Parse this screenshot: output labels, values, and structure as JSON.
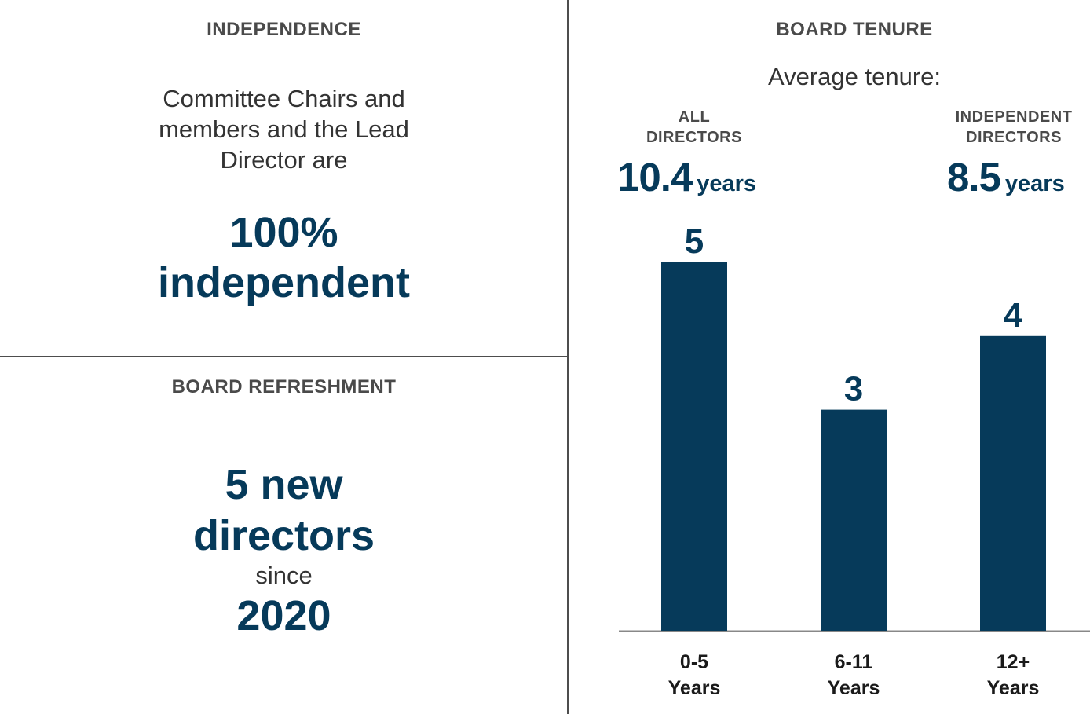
{
  "independence": {
    "title": "INDEPENDENCE",
    "text_lines": [
      "Committee Chairs and",
      "members and the Lead",
      "Director are"
    ],
    "highlight_1": "100%",
    "highlight_2": "independent"
  },
  "refreshment": {
    "title": "BOARD REFRESHMENT",
    "line_1": "5 new",
    "line_2": "directors",
    "line_3": "since",
    "line_4": "2020"
  },
  "tenure": {
    "title": "BOARD TENURE",
    "subtitle": "Average tenure:",
    "all": {
      "label_1": "ALL",
      "label_2": "DIRECTORS",
      "value": "10.4",
      "unit": "years"
    },
    "independent": {
      "label_1": "INDEPENDENT",
      "label_2": "DIRECTORS",
      "value": "8.5",
      "unit": "years"
    }
  },
  "colors": {
    "bar": "#063a5a",
    "text_dark": "#1a1a1a",
    "axis": "#888888"
  },
  "chart_data": {
    "type": "bar",
    "title": "BOARD TENURE",
    "categories": [
      "0-5 Years",
      "6-11 Years",
      "12+ Years"
    ],
    "category_lines": [
      [
        "0-5",
        "Years"
      ],
      [
        "6-11",
        "Years"
      ],
      [
        "12+",
        "Years"
      ]
    ],
    "values": [
      5,
      3,
      4
    ],
    "ylim": [
      0,
      5
    ],
    "xlabel": "",
    "ylabel": "",
    "grid": false
  }
}
